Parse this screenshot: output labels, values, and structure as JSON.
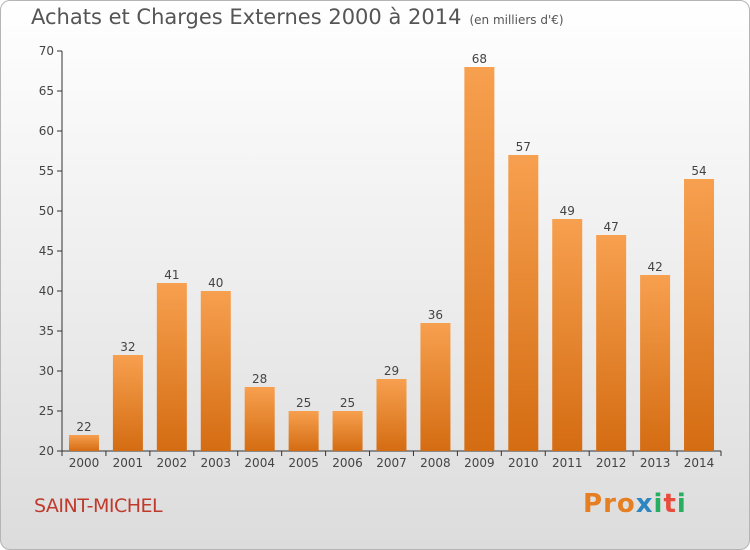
{
  "title": "Achats et Charges Externes 2000 à 2014",
  "unit_note": "(en milliers d'€)",
  "location": "SAINT-MICHEL",
  "logo_text": "Proxiti",
  "colors": {
    "bar_top": "#f7a04f",
    "bar_bottom": "#d46c12",
    "axis": "#333333",
    "grid": "#cccccc",
    "city": "#c0392b",
    "logo_letters": [
      "#e67e22",
      "#e67e22",
      "#e67e22",
      "#2e86c1",
      "#27ae60",
      "#e74c3c",
      "#27ae60"
    ]
  },
  "chart_data": {
    "type": "bar",
    "title": "Achats et Charges Externes 2000 à 2014",
    "subtitle": "(en milliers d'€)",
    "xlabel": "",
    "ylabel": "",
    "categories": [
      "2000",
      "2001",
      "2002",
      "2003",
      "2004",
      "2005",
      "2006",
      "2007",
      "2008",
      "2009",
      "2010",
      "2011",
      "2012",
      "2013",
      "2014"
    ],
    "values": [
      22,
      32,
      41,
      40,
      28,
      25,
      25,
      29,
      36,
      68,
      57,
      49,
      47,
      42,
      54
    ],
    "ylim": [
      20,
      70
    ],
    "yticks": [
      20,
      25,
      30,
      35,
      40,
      45,
      50,
      55,
      60,
      65,
      70
    ],
    "data_labels": true,
    "grid": false,
    "legend": "none"
  }
}
